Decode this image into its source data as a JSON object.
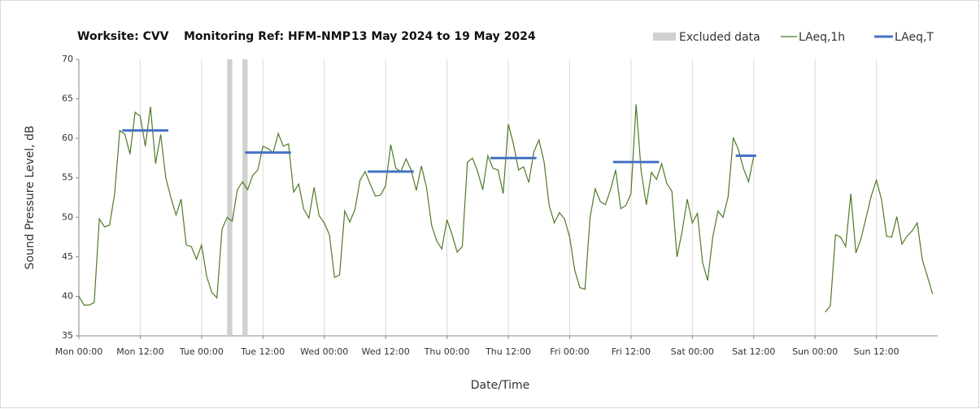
{
  "chart_data": {
    "type": "line",
    "title_parts": [
      "Worksite: CVV",
      "Monitoring Ref: HFM-NMP",
      "13 May 2024 to 19 May 2024"
    ],
    "y_label": "Sound Pressure Level, dB",
    "x_label": "Date/Time",
    "xlim": [
      0,
      168
    ],
    "xticks": [
      {
        "value": 0,
        "label": "Mon 00:00"
      },
      {
        "value": 12,
        "label": "Mon 12:00"
      },
      {
        "value": 24,
        "label": "Tue 00:00"
      },
      {
        "value": 36,
        "label": "Tue 12:00"
      },
      {
        "value": 48,
        "label": "Wed 00:00"
      },
      {
        "value": 60,
        "label": "Wed 12:00"
      },
      {
        "value": 72,
        "label": "Thu 00:00"
      },
      {
        "value": 84,
        "label": "Thu 12:00"
      },
      {
        "value": 96,
        "label": "Fri 00:00"
      },
      {
        "value": 108,
        "label": "Fri 12:00"
      },
      {
        "value": 120,
        "label": "Sat 00:00"
      },
      {
        "value": 132,
        "label": "Sat 12:00"
      },
      {
        "value": 144,
        "label": "Sun 00:00"
      },
      {
        "value": 156,
        "label": "Sun 12:00"
      }
    ],
    "ylim": [
      35,
      70
    ],
    "yticks": [
      35,
      40,
      45,
      50,
      55,
      60,
      65,
      70
    ],
    "grid": "x",
    "excluded": {
      "name": "Excluded data",
      "color": "#d0d0d0",
      "ranges": [
        [
          29,
          30
        ],
        [
          32,
          33
        ]
      ]
    },
    "series": [
      {
        "name": "LAeq,1h",
        "color": "#4f7a28",
        "x": [
          0,
          1,
          2,
          3,
          4,
          5,
          6,
          7,
          8,
          9,
          10,
          11,
          12,
          13,
          14,
          15,
          16,
          17,
          18,
          19,
          20,
          21,
          22,
          23,
          24,
          25,
          26,
          27,
          28,
          29,
          30,
          31,
          32,
          33,
          34,
          35,
          36,
          37,
          38,
          39,
          40,
          41,
          42,
          43,
          44,
          45,
          46,
          47,
          48,
          49,
          50,
          51,
          52,
          53,
          54,
          55,
          56,
          57,
          58,
          59,
          60,
          61,
          62,
          63,
          64,
          65,
          66,
          67,
          68,
          69,
          70,
          71,
          72,
          73,
          74,
          75,
          76,
          77,
          78,
          79,
          80,
          81,
          82,
          83,
          84,
          85,
          86,
          87,
          88,
          89,
          90,
          91,
          92,
          93,
          94,
          95,
          96,
          97,
          98,
          99,
          100,
          101,
          102,
          103,
          104,
          105,
          106,
          107,
          108,
          109,
          110,
          111,
          112,
          113,
          114,
          115,
          116,
          117,
          118,
          119,
          120,
          121,
          122,
          123,
          124,
          125,
          126,
          127,
          128,
          129,
          130,
          131,
          132,
          133,
          134,
          135,
          136,
          137,
          138,
          139,
          140,
          141,
          142,
          143,
          144,
          145,
          146,
          147,
          148,
          149,
          150,
          151,
          152,
          153,
          154,
          155,
          156,
          157,
          158,
          159,
          160,
          161,
          162,
          163,
          164,
          165,
          166,
          167
        ],
        "values": [
          40,
          38.9,
          38.9,
          39.2,
          49.8,
          48.8,
          49,
          53,
          61,
          60.5,
          58,
          63.3,
          62.8,
          59,
          64,
          56.8,
          60.5,
          55,
          52.5,
          50.3,
          52.3,
          46.5,
          46.3,
          44.7,
          46.5,
          42.5,
          40.5,
          39.8,
          48.5,
          50,
          49.5,
          53.5,
          54.5,
          53.5,
          55.3,
          56,
          59,
          58.7,
          58.2,
          60.6,
          59,
          59.3,
          53.2,
          54.2,
          51,
          49.9,
          53.8,
          50.2,
          49.3,
          47.8,
          42.4,
          42.7,
          50.8,
          49.4,
          51,
          54.7,
          55.8,
          54.2,
          52.7,
          52.8,
          54,
          59.2,
          56.2,
          55.8,
          57.4,
          56,
          53.4,
          56.5,
          53.8,
          49,
          47,
          46,
          49.7,
          47.8,
          45.6,
          46.3,
          57,
          57.5,
          55.8,
          53.5,
          57.8,
          56.2,
          56,
          53,
          61.8,
          59.3,
          56,
          56.4,
          54.4,
          58.3,
          59.8,
          57,
          51.5,
          49.3,
          50.6,
          49.8,
          47.5,
          43.3,
          41.1,
          40.9,
          50,
          53.6,
          52,
          51.6,
          53.5,
          56,
          51.1,
          51.5,
          53,
          64.3,
          55.8,
          51.6,
          55.7,
          54.8,
          56.8,
          54.3,
          53.3,
          45,
          48.2,
          52.3,
          49.3,
          50.5,
          44.3,
          42,
          47.5,
          50.8,
          50,
          52.6,
          60.1,
          58.6,
          56.2,
          54.5,
          57.7,
          null,
          null,
          null,
          null,
          null,
          null,
          null,
          null,
          null,
          null,
          null,
          null,
          null,
          38,
          38.8,
          47.8,
          47.5,
          46.3,
          53,
          45.5,
          47.3,
          50,
          52.7,
          54.7,
          52.3,
          47.6,
          47.5,
          50.1,
          46.6,
          47.6,
          48.3,
          49.3,
          44.6,
          42.5,
          40.3
        ]
      },
      {
        "name": "LAeq,T",
        "color": "#4472c4",
        "segments": [
          {
            "start": 8.5,
            "end": 17.5,
            "value": 61
          },
          {
            "start": 32.5,
            "end": 41.5,
            "value": 58.2
          },
          {
            "start": 56.5,
            "end": 65.5,
            "value": 55.8
          },
          {
            "start": 80.5,
            "end": 89.5,
            "value": 57.5
          },
          {
            "start": 104.5,
            "end": 113.5,
            "value": 57
          },
          {
            "start": 128.5,
            "end": 132.5,
            "value": 57.8
          }
        ]
      }
    ]
  }
}
